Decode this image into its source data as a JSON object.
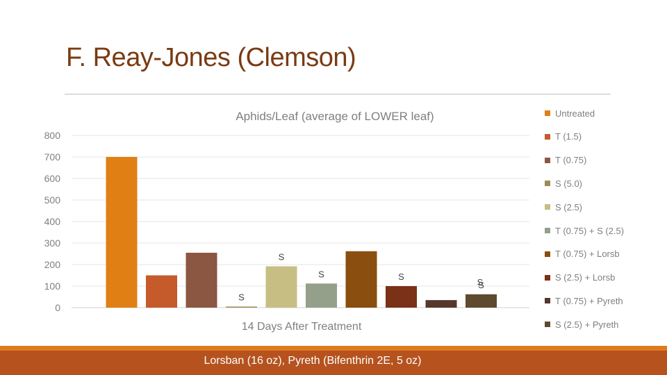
{
  "slide": {
    "title": "F. Reay-Jones (Clemson)",
    "footer": "Lorsban (16 oz), Pyreth (Bifenthrin 2E, 5 oz)"
  },
  "chart_data": {
    "type": "bar",
    "title": "Aphids/Leaf (average of LOWER leaf)",
    "xlabel": "14 Days After Treatment",
    "ylabel": "",
    "ylim": [
      0,
      800
    ],
    "yticks": [
      0,
      100,
      200,
      300,
      400,
      500,
      600,
      700,
      800
    ],
    "grid": true,
    "legend_position": "right",
    "series": [
      {
        "name": "Untreated",
        "value": 700,
        "color": "#e07f14",
        "annotation": ""
      },
      {
        "name": "T (1.5)",
        "value": 150,
        "color": "#c55a2b",
        "annotation": ""
      },
      {
        "name": "T (0.75)",
        "value": 255,
        "color": "#8b5742",
        "annotation": ""
      },
      {
        "name": "S (5.0)",
        "value": 5,
        "color": "#9d8b59",
        "annotation": "S"
      },
      {
        "name": "S (2.5)",
        "value": 192,
        "color": "#c7be84",
        "annotation": "S"
      },
      {
        "name": "T (0.75) + S (2.5)",
        "value": 112,
        "color": "#94a08a",
        "annotation": "S"
      },
      {
        "name": "T (0.75) + Lorsb",
        "value": 262,
        "color": "#8a4e0e",
        "annotation": ""
      },
      {
        "name": "S (2.5) + Lorsb",
        "value": 100,
        "color": "#7b3018",
        "annotation": "S"
      },
      {
        "name": "T (0.75) + Pyreth",
        "value": 35,
        "color": "#55372c",
        "annotation": ""
      },
      {
        "name": "S (2.5) + Pyreth",
        "value": 62,
        "color": "#5e4a2e",
        "annotation": "S"
      }
    ]
  }
}
